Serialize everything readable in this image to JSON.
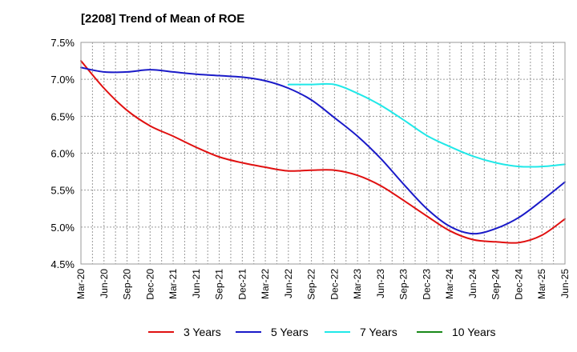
{
  "chart_data": {
    "type": "line",
    "title": "[2208]  Trend of Mean of ROE",
    "xlabel": "",
    "ylabel": "",
    "ylim": [
      4.5,
      7.5
    ],
    "yticks": [
      4.5,
      5.0,
      5.5,
      6.0,
      6.5,
      7.0,
      7.5
    ],
    "ytick_labels": [
      "4.5%",
      "5.0%",
      "5.5%",
      "6.0%",
      "6.5%",
      "7.0%",
      "7.5%"
    ],
    "x_categories": [
      "Mar-20",
      "Jun-20",
      "Sep-20",
      "Dec-20",
      "Mar-21",
      "Jun-21",
      "Sep-21",
      "Dec-21",
      "Mar-22",
      "Jun-22",
      "Sep-22",
      "Dec-22",
      "Mar-23",
      "Jun-23",
      "Sep-23",
      "Dec-23",
      "Mar-24",
      "Jun-24",
      "Sep-24",
      "Dec-24",
      "Mar-25",
      "Jun-25"
    ],
    "grid": true,
    "legend_position": "bottom",
    "series": [
      {
        "name": "3 Years",
        "color": "#e01010",
        "values": [
          7.25,
          6.88,
          6.58,
          6.37,
          6.23,
          6.08,
          5.95,
          5.87,
          5.81,
          5.76,
          5.77,
          5.77,
          5.7,
          5.56,
          5.36,
          5.15,
          4.95,
          4.83,
          4.8,
          4.79,
          4.89,
          5.11
        ]
      },
      {
        "name": "5 Years",
        "color": "#1a1ac8",
        "values": [
          7.16,
          7.1,
          7.1,
          7.13,
          7.1,
          7.07,
          7.05,
          7.03,
          6.98,
          6.88,
          6.72,
          6.48,
          6.23,
          5.93,
          5.58,
          5.25,
          5.01,
          4.91,
          4.98,
          5.13,
          5.36,
          5.61
        ]
      },
      {
        "name": "7 Years",
        "color": "#20e8e8",
        "values": [
          null,
          null,
          null,
          null,
          null,
          null,
          null,
          null,
          null,
          6.93,
          6.93,
          6.93,
          6.81,
          6.65,
          6.45,
          6.24,
          6.09,
          5.96,
          5.87,
          5.82,
          5.82,
          5.85
        ]
      },
      {
        "name": "10 Years",
        "color": "#1a8a1a",
        "values": []
      }
    ]
  }
}
